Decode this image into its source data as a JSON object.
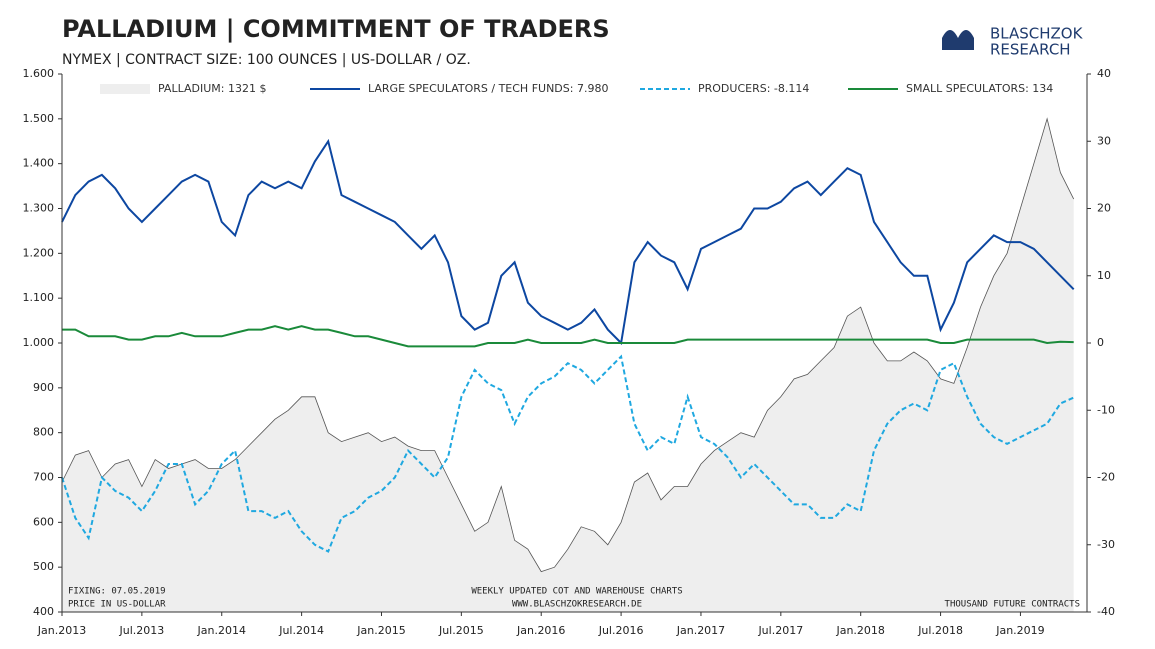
{
  "chart_data": {
    "type": "line",
    "title": "PALLADIUM | COMMITMENT OF TRADERS",
    "subtitle": "NYMEX | CONTRACT SIZE: 100 OUNCES | US-DOLLAR / OZ.",
    "logo": [
      "BLASCHZOK",
      "RESEARCH"
    ],
    "annotations": [
      "FIXING: 07.05.2019",
      "PRICE IN US-DOLLAR",
      "WEEKLY UPDATED COT AND WAREHOUSE CHARTS",
      "WWW.BLASCHZOKRESEARCH.DE",
      "THOUSAND  FUTURE CONTRACTS"
    ],
    "x": [
      "2013-01",
      "2013-02",
      "2013-03",
      "2013-04",
      "2013-05",
      "2013-06",
      "2013-07",
      "2013-08",
      "2013-09",
      "2013-10",
      "2013-11",
      "2013-12",
      "2014-01",
      "2014-02",
      "2014-03",
      "2014-04",
      "2014-05",
      "2014-06",
      "2014-07",
      "2014-08",
      "2014-09",
      "2014-10",
      "2014-11",
      "2014-12",
      "2015-01",
      "2015-02",
      "2015-03",
      "2015-04",
      "2015-05",
      "2015-06",
      "2015-07",
      "2015-08",
      "2015-09",
      "2015-10",
      "2015-11",
      "2015-12",
      "2016-01",
      "2016-02",
      "2016-03",
      "2016-04",
      "2016-05",
      "2016-06",
      "2016-07",
      "2016-08",
      "2016-09",
      "2016-10",
      "2016-11",
      "2016-12",
      "2017-01",
      "2017-02",
      "2017-03",
      "2017-04",
      "2017-05",
      "2017-06",
      "2017-07",
      "2017-08",
      "2017-09",
      "2017-10",
      "2017-11",
      "2017-12",
      "2018-01",
      "2018-02",
      "2018-03",
      "2018-04",
      "2018-05",
      "2018-06",
      "2018-07",
      "2018-08",
      "2018-09",
      "2018-10",
      "2018-11",
      "2018-12",
      "2019-01",
      "2019-02",
      "2019-03",
      "2019-04",
      "2019-05"
    ],
    "xlim": [
      "2013-01",
      "2019-06"
    ],
    "xticks": [
      {
        "value": "2013-01",
        "label": "Jan.2013"
      },
      {
        "value": "2013-07",
        "label": "Jul.2013"
      },
      {
        "value": "2014-01",
        "label": "Jan.2014"
      },
      {
        "value": "2014-07",
        "label": "Jul.2014"
      },
      {
        "value": "2015-01",
        "label": "Jan.2015"
      },
      {
        "value": "2015-07",
        "label": "Jul.2015"
      },
      {
        "value": "2016-01",
        "label": "Jan.2016"
      },
      {
        "value": "2016-07",
        "label": "Jul.2016"
      },
      {
        "value": "2017-01",
        "label": "Jan.2017"
      },
      {
        "value": "2017-07",
        "label": "Jul.2017"
      },
      {
        "value": "2018-01",
        "label": "Jan.2018"
      },
      {
        "value": "2018-07",
        "label": "Jul.2018"
      },
      {
        "value": "2019-01",
        "label": "Jan.2019"
      }
    ],
    "ylim": [
      400,
      1600
    ],
    "yticks": [
      400,
      500,
      600,
      700,
      800,
      900,
      {
        "value": 1000,
        "label": "1.000"
      },
      {
        "value": 1100,
        "label": "1.100"
      },
      {
        "value": 1200,
        "label": "1.200"
      },
      {
        "value": 1300,
        "label": "1.300"
      },
      {
        "value": 1400,
        "label": "1.400"
      },
      {
        "value": 1500,
        "label": "1.500"
      },
      {
        "value": 1600,
        "label": "1.600"
      }
    ],
    "y2lim": [
      -40,
      40
    ],
    "y2ticks": [
      -40,
      -30,
      -20,
      -10,
      0,
      10,
      20,
      30,
      40
    ],
    "series": [
      {
        "name": "PALLADIUM: 1321 $",
        "color": "#eeeeee",
        "style": "area",
        "axis": "y",
        "values": [
          690,
          750,
          760,
          700,
          730,
          740,
          680,
          740,
          720,
          730,
          740,
          720,
          720,
          740,
          770,
          800,
          830,
          850,
          880,
          880,
          800,
          780,
          790,
          800,
          780,
          790,
          770,
          760,
          760,
          700,
          640,
          580,
          600,
          680,
          560,
          540,
          490,
          500,
          540,
          590,
          580,
          550,
          600,
          690,
          710,
          650,
          680,
          680,
          730,
          760,
          780,
          800,
          790,
          850,
          880,
          920,
          930,
          960,
          990,
          1060,
          1080,
          1000,
          960,
          960,
          980,
          960,
          920,
          910,
          990,
          1080,
          1150,
          1200,
          1300,
          1400,
          1500,
          1380,
          1321
        ]
      },
      {
        "name": "LARGE SPECULATORS / TECH FUNDS: 7.980",
        "color": "#0d47a1",
        "style": "line",
        "axis": "y2",
        "values": [
          18,
          22,
          24,
          25,
          23,
          20,
          18,
          20,
          22,
          24,
          25,
          24,
          18,
          16,
          22,
          24,
          23,
          24,
          23,
          27,
          30,
          22,
          21,
          20,
          19,
          18,
          16,
          14,
          16,
          12,
          4,
          2,
          3,
          10,
          12,
          6,
          4,
          3,
          2,
          3,
          5,
          2,
          0,
          12,
          15,
          13,
          12,
          8,
          14,
          15,
          16,
          17,
          20,
          20,
          21,
          23,
          24,
          22,
          24,
          26,
          25,
          18,
          15,
          12,
          10,
          10,
          2,
          6,
          12,
          14,
          16,
          15,
          15,
          14,
          12,
          10,
          7.98
        ]
      },
      {
        "name": "PRODUCERS: -8.114",
        "color": "#1fa8e0",
        "style": "dashed",
        "axis": "y2",
        "values": [
          -20,
          -26,
          -29,
          -20,
          -22,
          -23,
          -25,
          -22,
          -18,
          -18,
          -24,
          -22,
          -18,
          -16,
          -25,
          -25,
          -26,
          -25,
          -28,
          -30,
          -31,
          -26,
          -25,
          -23,
          -22,
          -20,
          -16,
          -18,
          -20,
          -17,
          -8,
          -4,
          -6,
          -7,
          -12,
          -8,
          -6,
          -5,
          -3,
          -4,
          -6,
          -4,
          -2,
          -12,
          -16,
          -14,
          -15,
          -8,
          -14,
          -15,
          -17,
          -20,
          -18,
          -20,
          -22,
          -24,
          -24,
          -26,
          -26,
          -24,
          -25,
          -16,
          -12,
          -10,
          -9,
          -10,
          -4,
          -3,
          -8,
          -12,
          -14,
          -15,
          -14,
          -13,
          -12,
          -9,
          -8.114
        ]
      },
      {
        "name": "SMALL SPECULATORS: 134",
        "color": "#1a8a3a",
        "style": "line",
        "axis": "y2",
        "values": [
          2,
          2,
          1,
          1,
          1,
          0.5,
          0.5,
          1,
          1,
          1.5,
          1,
          1,
          1,
          1.5,
          2,
          2,
          2.5,
          2,
          2.5,
          2,
          2,
          1.5,
          1,
          1,
          0.5,
          0,
          -0.5,
          -0.5,
          -0.5,
          -0.5,
          -0.5,
          -0.5,
          0,
          0,
          0,
          0.5,
          0,
          0,
          0,
          0,
          0.5,
          0,
          0,
          0,
          0,
          0,
          0,
          0.5,
          0.5,
          0.5,
          0.5,
          0.5,
          0.5,
          0.5,
          0.5,
          0.5,
          0.5,
          0.5,
          0.5,
          0.5,
          0.5,
          0.5,
          0.5,
          0.5,
          0.5,
          0.5,
          0,
          0,
          0.5,
          0.5,
          0.5,
          0.5,
          0.5,
          0.5,
          0,
          0.2,
          0.134
        ]
      }
    ]
  }
}
